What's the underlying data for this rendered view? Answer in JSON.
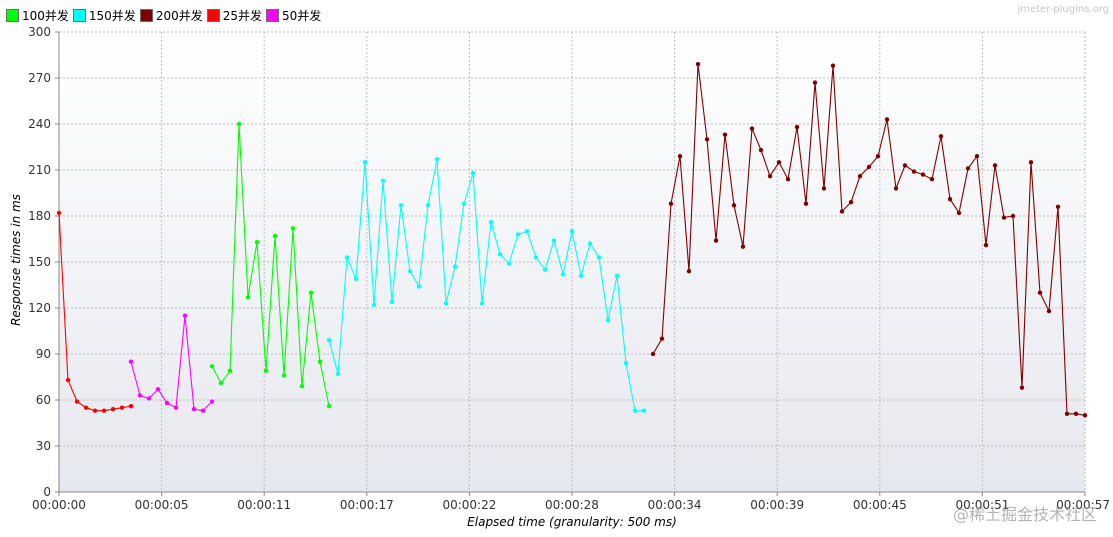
{
  "legend": [
    {
      "label": "100并发",
      "color": "#00ff00"
    },
    {
      "label": "150并发",
      "color": "#00ffff"
    },
    {
      "label": "200并发",
      "color": "#800000"
    },
    {
      "label": "25并发",
      "color": "#ff0000"
    },
    {
      "label": "50并发",
      "color": "#ff00ff"
    }
  ],
  "watermark": "jmeter-plugins.org",
  "credit": "@稀土掘金技术社区",
  "chart_data": {
    "type": "line",
    "xlabel": "Elapsed time (granularity: 500 ms)",
    "ylabel": "Response times in ms",
    "ylim": [
      0,
      300
    ],
    "yticks": [
      "0",
      "30",
      "60",
      "90",
      "120",
      "150",
      "180",
      "210",
      "240",
      "270",
      "300"
    ],
    "xticks": [
      "00:00:00",
      "00:00:05",
      "00:00:11",
      "00:00:17",
      "00:00:22",
      "00:00:28",
      "00:00:34",
      "00:00:39",
      "00:00:45",
      "00:00:51",
      "00:00:57"
    ],
    "x_range_seconds": [
      0,
      57
    ],
    "grid": true,
    "legend_position": "top-left",
    "series": [
      {
        "name": "25并发",
        "color": "#ff0000",
        "x": [
          0,
          0.5,
          1,
          1.5,
          2,
          2.5,
          3,
          3.5,
          4
        ],
        "y": [
          182,
          73,
          59,
          55,
          53,
          53,
          54,
          55,
          56
        ]
      },
      {
        "name": "50并发",
        "color": "#ff00ff",
        "x": [
          4,
          4.5,
          5,
          5.5,
          6,
          6.5,
          7,
          7.5,
          8,
          8.5
        ],
        "y": [
          85,
          63,
          61,
          67,
          58,
          55,
          115,
          54,
          53,
          59
        ]
      },
      {
        "name": "100并发",
        "color": "#00ff00",
        "x": [
          8.5,
          9,
          9.5,
          10,
          10.5,
          11,
          11.5,
          12,
          12.5,
          13,
          13.5,
          14,
          14.5,
          15
        ],
        "y": [
          82,
          71,
          79,
          240,
          127,
          163,
          79,
          167,
          76,
          172,
          69,
          130,
          85,
          56
        ]
      },
      {
        "name": "150并发",
        "color": "#00ffff",
        "x": [
          15,
          15.5,
          16,
          16.5,
          17,
          17.5,
          18,
          18.5,
          19,
          19.5,
          20,
          20.5,
          21,
          21.5,
          22,
          22.5,
          23,
          23.5,
          24,
          24.5,
          25,
          25.5,
          26,
          26.5,
          27,
          27.5,
          28,
          28.5,
          29,
          29.5,
          30,
          30.5,
          31,
          31.5,
          32,
          32.5
        ],
        "y": [
          99,
          77,
          153,
          139,
          215,
          122,
          203,
          124,
          187,
          144,
          134,
          187,
          217,
          123,
          147,
          188,
          208,
          123,
          176,
          155,
          149,
          168,
          170,
          153,
          145,
          164,
          142,
          170,
          141,
          162,
          153,
          112,
          141,
          84,
          53,
          53
        ]
      },
      {
        "name": "200并发",
        "color": "#800000",
        "x": [
          33,
          33.5,
          34,
          34.5,
          35,
          35.5,
          36,
          36.5,
          37,
          37.5,
          38,
          38.5,
          39,
          39.5,
          40,
          40.5,
          41,
          41.5,
          42,
          42.5,
          43,
          43.5,
          44,
          44.5,
          45,
          45.5,
          46,
          46.5,
          47,
          47.5,
          48,
          48.5,
          49,
          49.5,
          50,
          50.5,
          51,
          51.5,
          52,
          52.5,
          53,
          53.5,
          54,
          54.5,
          55,
          55.5,
          56,
          56.5,
          57
        ],
        "y": [
          90,
          100,
          188,
          219,
          144,
          279,
          230,
          164,
          233,
          187,
          160,
          237,
          223,
          206,
          215,
          204,
          238,
          188,
          267,
          198,
          278,
          183,
          189,
          206,
          212,
          219,
          243,
          198,
          213,
          209,
          207,
          204,
          232,
          191,
          182,
          211,
          219,
          161,
          213,
          179,
          180,
          68,
          215,
          130,
          118,
          186,
          51,
          51,
          50
        ]
      }
    ]
  }
}
